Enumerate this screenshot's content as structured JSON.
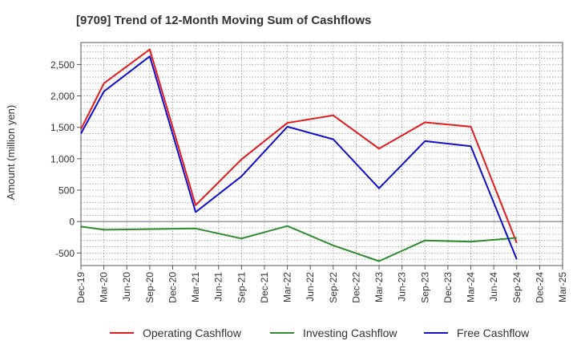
{
  "chart_data": {
    "type": "line",
    "title": "[9709]  Trend of 12-Month Moving Sum of Cashflows",
    "xlabel": "",
    "ylabel": "Amount (million yen)",
    "ylim": [
      -700,
      2850
    ],
    "yticks": [
      -500,
      0,
      500,
      1000,
      1500,
      2000,
      2500
    ],
    "ytick_labels": [
      "-500",
      "0",
      "500",
      "1,000",
      "1,500",
      "2,000",
      "2,500"
    ],
    "categories": [
      "Dec-19",
      "Mar-20",
      "Jun-20",
      "Sep-20",
      "Dec-20",
      "Mar-21",
      "Jun-21",
      "Sep-21",
      "Dec-21",
      "Mar-22",
      "Jun-22",
      "Sep-22",
      "Dec-22",
      "Mar-23",
      "Jun-23",
      "Sep-23",
      "Dec-23",
      "Mar-24",
      "Jun-24",
      "Sep-24",
      "Dec-24",
      "Mar-25"
    ],
    "grid": true,
    "legend_position": "bottom",
    "series": [
      {
        "name": "Operating Cashflow",
        "color": "#e31a1c",
        "values": [
          1470,
          2200,
          null,
          2740,
          null,
          260,
          null,
          990,
          null,
          1570,
          null,
          1690,
          null,
          1160,
          null,
          1580,
          null,
          1510,
          null,
          -340,
          null,
          null
        ]
      },
      {
        "name": "Investing Cashflow",
        "color": "#2e8b2e",
        "values": [
          -80,
          -130,
          null,
          -120,
          null,
          -110,
          null,
          -270,
          null,
          -70,
          null,
          -380,
          null,
          -630,
          null,
          -300,
          null,
          -320,
          null,
          -260,
          null,
          null
        ]
      },
      {
        "name": "Free Cashflow",
        "color": "#1010cc",
        "values": [
          1400,
          2070,
          null,
          2630,
          null,
          150,
          null,
          720,
          null,
          1510,
          null,
          1310,
          null,
          530,
          null,
          1280,
          null,
          1200,
          null,
          -600,
          null,
          null
        ]
      }
    ]
  }
}
